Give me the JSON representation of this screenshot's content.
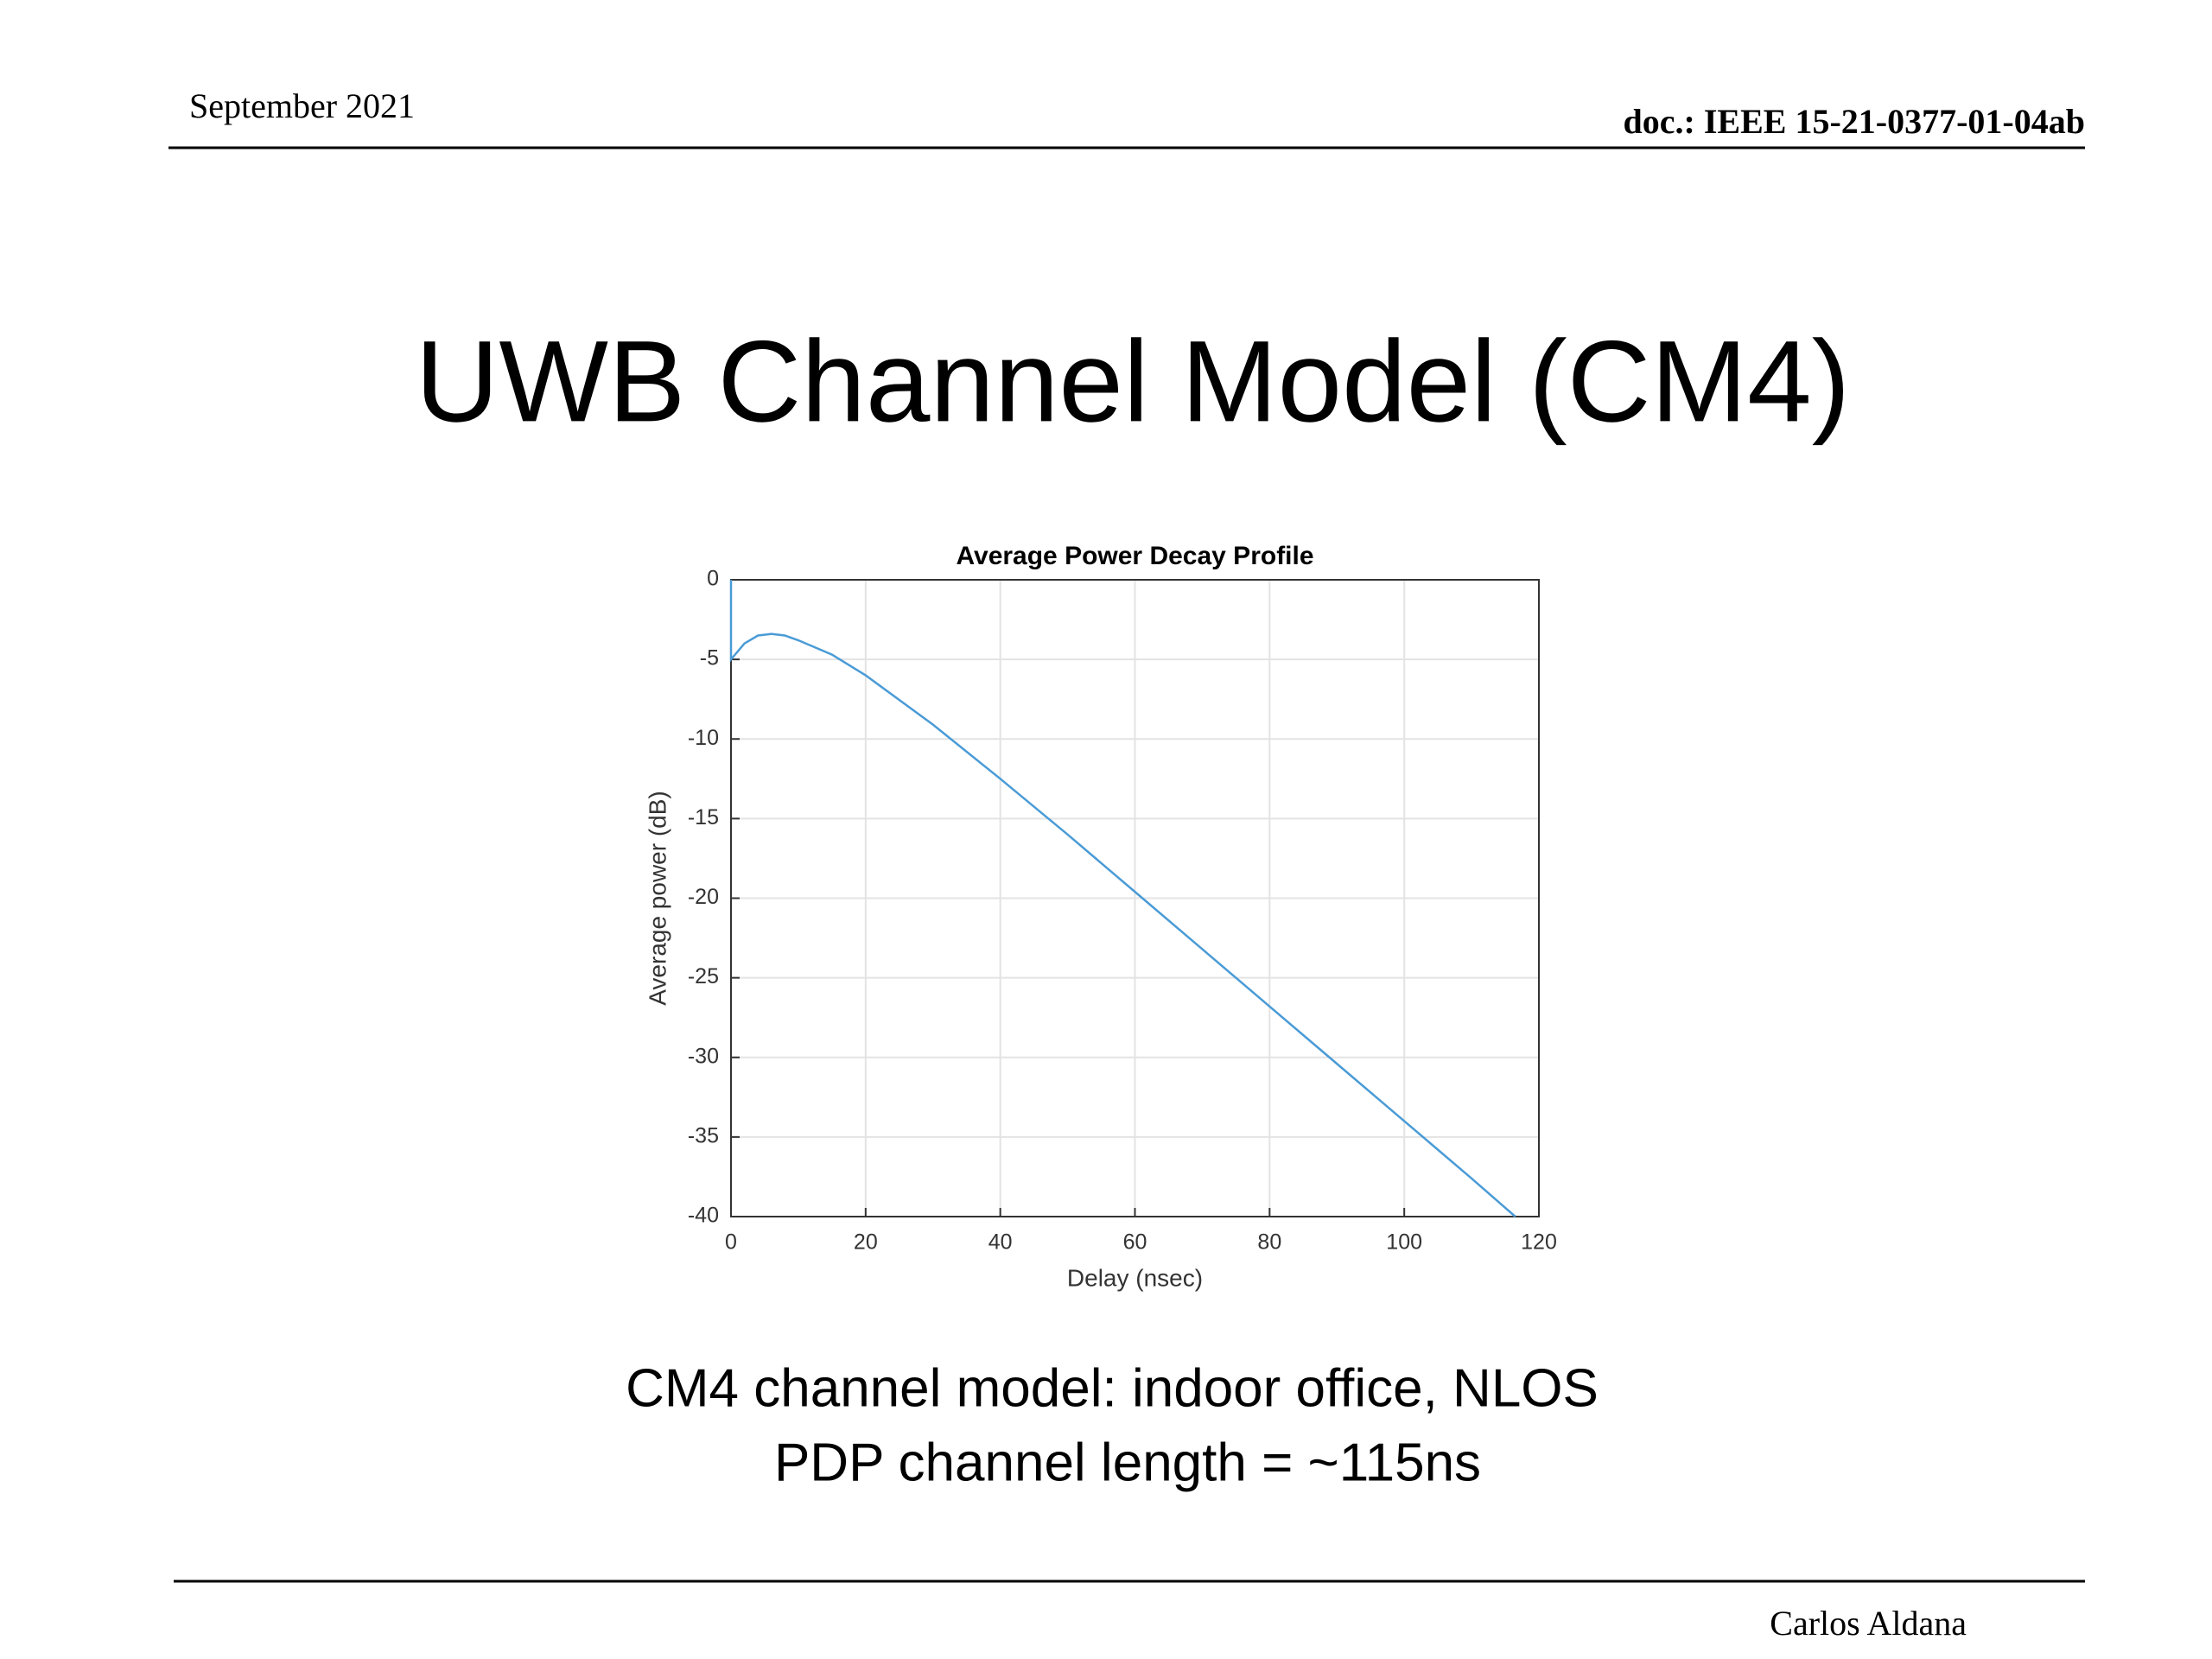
{
  "header": {
    "date": "September 2021",
    "doc": "doc.: IEEE 15-21-0377-01-04ab"
  },
  "title": "UWB Channel Model (CM4)",
  "chart_data": {
    "type": "line",
    "title": "Average Power Decay Profile",
    "x_label": "Delay (nsec)",
    "y_label": "Average power (dB)",
    "x": [
      0,
      0,
      2,
      4,
      6,
      8,
      10,
      15,
      20,
      30,
      40,
      50,
      60,
      70,
      80,
      90,
      100,
      110,
      116.5
    ],
    "series": [
      {
        "name": "PDP",
        "color": "#4a9bd6",
        "values": [
          0,
          -5,
          -4,
          -3.5,
          -3.4,
          -3.5,
          -3.8,
          -4.7,
          -6,
          -9.1,
          -12.5,
          -16,
          -19.6,
          -23.2,
          -26.8,
          -30.4,
          -34,
          -37.6,
          -40
        ]
      }
    ],
    "xlim": [
      0,
      120
    ],
    "xticks": [
      0,
      20,
      40,
      60,
      80,
      100,
      120
    ],
    "ylim": [
      -40,
      0
    ],
    "yticks": [
      -40,
      -35,
      -30,
      -25,
      -20,
      -15,
      -10,
      -5,
      0
    ],
    "grid": true
  },
  "caption": [
    "CM4 channel model: indoor office, NLOS",
    "PDP channel length = ~115ns"
  ],
  "footer": {
    "author": "Carlos Aldana"
  }
}
